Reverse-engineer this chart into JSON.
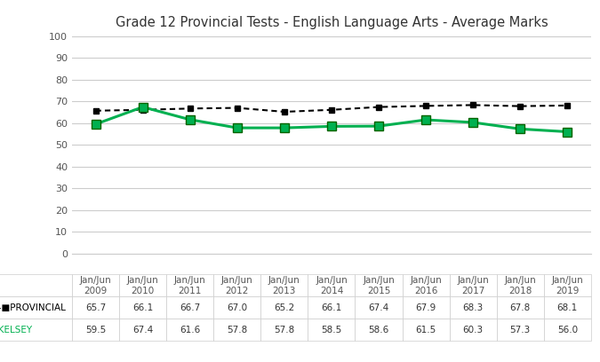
{
  "title": "Grade 12 Provincial Tests - English Language Arts - Average Marks",
  "x_labels": [
    "Jan/Jun\n2009",
    "Jan/Jun\n2010",
    "Jan/Jun\n2011",
    "Jan/Jun\n2012",
    "Jan/Jun\n2013",
    "Jan/Jun\n2014",
    "Jan/Jun\n2015",
    "Jan/Jun\n2016",
    "Jan/Jun\n2017",
    "Jan/Jun\n2018",
    "Jan/Jun\n2019"
  ],
  "provincial": [
    65.7,
    66.1,
    66.7,
    67.0,
    65.2,
    66.1,
    67.4,
    67.9,
    68.3,
    67.8,
    68.1
  ],
  "kelsey": [
    59.5,
    67.4,
    61.6,
    57.8,
    57.8,
    58.5,
    58.6,
    61.5,
    60.3,
    57.3,
    56.0
  ],
  "provincial_color": "#000000",
  "kelsey_color": "#00b050",
  "background_color": "#ffffff",
  "ylim": [
    0,
    100
  ],
  "yticks": [
    0,
    10,
    20,
    30,
    40,
    50,
    60,
    70,
    80,
    90,
    100
  ],
  "legend_provincial": "PROVINCIAL",
  "legend_kelsey": "KELSEY",
  "table_provincial": [
    "65.7",
    "66.1",
    "66.7",
    "67.0",
    "65.2",
    "66.1",
    "67.4",
    "67.9",
    "68.3",
    "67.8",
    "68.1"
  ],
  "table_kelsey": [
    "59.5",
    "67.4",
    "61.6",
    "57.8",
    "57.8",
    "58.5",
    "58.6",
    "61.5",
    "60.3",
    "57.3",
    "56.0"
  ]
}
